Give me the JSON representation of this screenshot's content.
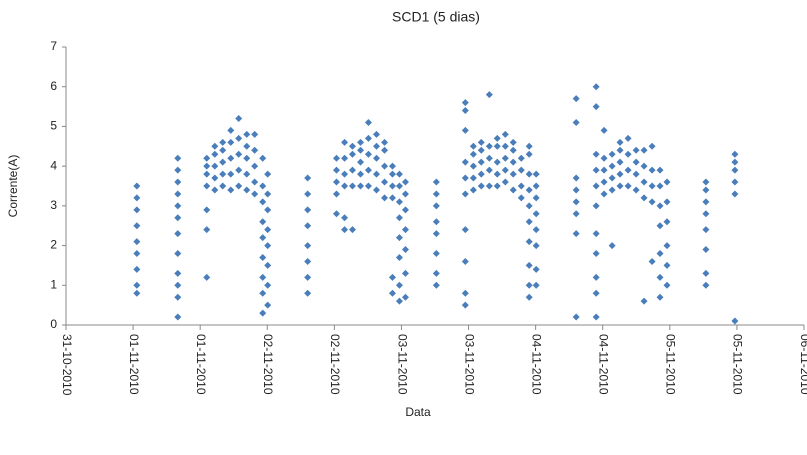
{
  "chart_data": {
    "type": "scatter",
    "title": "SCD1 (5 dias)",
    "x_label": "Data",
    "y_label": "Corrente(A)",
    "xlim": [
      0,
      5.5
    ],
    "ylim": [
      0,
      7
    ],
    "yticks": [
      0,
      1,
      2,
      3,
      4,
      5,
      6,
      7
    ],
    "xticks": [
      {
        "value": 0,
        "label": "31-10-2010"
      },
      {
        "value": 0.5,
        "label": "01-11-2010"
      },
      {
        "value": 1,
        "label": "01-11-2010"
      },
      {
        "value": 1.5,
        "label": "02-11-2010"
      },
      {
        "value": 2,
        "label": "02-11-2010"
      },
      {
        "value": 2.5,
        "label": "03-11-2010"
      },
      {
        "value": 3,
        "label": "03-11-2010"
      },
      {
        "value": 3.5,
        "label": "04-11-2010"
      },
      {
        "value": 4,
        "label": "04-11-2010"
      },
      {
        "value": 4.5,
        "label": "05-11-2010"
      },
      {
        "value": 5,
        "label": "05-11-2010"
      },
      {
        "value": 5.5,
        "label": "06-11-2010"
      }
    ],
    "x": [
      0.528,
      0.528,
      0.528,
      0.528,
      0.528,
      0.528,
      0.528,
      0.528,
      0.528,
      0.833,
      0.833,
      0.833,
      0.833,
      0.833,
      0.833,
      0.833,
      0.833,
      0.833,
      0.833,
      0.833,
      0.833,
      1.049,
      1.049,
      1.049,
      1.049,
      1.049,
      1.049,
      1.049,
      1.109,
      1.109,
      1.109,
      1.109,
      1.109,
      1.168,
      1.168,
      1.168,
      1.168,
      1.168,
      1.228,
      1.228,
      1.228,
      1.228,
      1.228,
      1.287,
      1.287,
      1.287,
      1.287,
      1.287,
      1.347,
      1.347,
      1.347,
      1.347,
      1.347,
      1.406,
      1.406,
      1.406,
      1.406,
      1.406,
      1.466,
      1.466,
      1.466,
      1.466,
      1.466,
      1.466,
      1.466,
      1.466,
      1.466,
      1.503,
      1.503,
      1.503,
      1.503,
      1.503,
      1.503,
      1.503,
      1.503,
      1.801,
      1.801,
      1.801,
      1.801,
      1.801,
      1.801,
      1.801,
      1.801,
      2.016,
      2.016,
      2.016,
      2.016,
      2.016,
      2.076,
      2.076,
      2.076,
      2.076,
      2.076,
      2.076,
      2.135,
      2.135,
      2.135,
      2.135,
      2.135,
      2.195,
      2.195,
      2.195,
      2.195,
      2.195,
      2.254,
      2.254,
      2.254,
      2.254,
      2.254,
      2.314,
      2.314,
      2.314,
      2.314,
      2.314,
      2.374,
      2.374,
      2.374,
      2.374,
      2.374,
      2.433,
      2.433,
      2.433,
      2.433,
      2.433,
      2.433,
      2.485,
      2.485,
      2.485,
      2.485,
      2.485,
      2.485,
      2.485,
      2.485,
      2.53,
      2.53,
      2.53,
      2.53,
      2.53,
      2.53,
      2.53,
      2.76,
      2.76,
      2.76,
      2.76,
      2.76,
      2.76,
      2.76,
      2.76,
      2.976,
      2.976,
      2.976,
      2.976,
      2.976,
      2.976,
      2.976,
      2.976,
      2.976,
      2.976,
      3.036,
      3.036,
      3.036,
      3.036,
      3.036,
      3.095,
      3.095,
      3.095,
      3.095,
      3.095,
      3.155,
      3.155,
      3.155,
      3.155,
      3.155,
      3.214,
      3.214,
      3.214,
      3.214,
      3.214,
      3.274,
      3.274,
      3.274,
      3.274,
      3.274,
      3.333,
      3.333,
      3.333,
      3.333,
      3.333,
      3.393,
      3.393,
      3.393,
      3.393,
      3.452,
      3.452,
      3.452,
      3.452,
      3.452,
      3.452,
      3.452,
      3.452,
      3.452,
      3.452,
      3.504,
      3.504,
      3.504,
      3.504,
      3.504,
      3.504,
      3.504,
      3.504,
      3.802,
      3.802,
      3.802,
      3.802,
      3.802,
      3.802,
      3.802,
      3.802,
      3.951,
      3.951,
      3.951,
      3.951,
      3.951,
      3.951,
      3.951,
      3.951,
      3.951,
      3.951,
      3.951,
      4.01,
      4.01,
      4.01,
      4.01,
      4.01,
      4.07,
      4.07,
      4.07,
      4.07,
      4.07,
      4.129,
      4.129,
      4.129,
      4.129,
      4.129,
      4.189,
      4.189,
      4.189,
      4.189,
      4.249,
      4.249,
      4.249,
      4.249,
      4.308,
      4.308,
      4.308,
      4.308,
      4.308,
      4.368,
      4.368,
      4.368,
      4.368,
      4.368,
      4.427,
      4.427,
      4.427,
      4.427,
      4.427,
      4.427,
      4.427,
      4.479,
      4.479,
      4.479,
      4.479,
      4.479,
      4.479,
      4.769,
      4.769,
      4.769,
      4.769,
      4.769,
      4.769,
      4.769,
      4.769,
      4.985,
      4.985,
      4.985,
      4.985,
      4.985,
      4.985
    ],
    "series": [
      {
        "color": "#4a7ebb",
        "values": [
          0.8,
          1.0,
          1.4,
          1.8,
          2.1,
          2.5,
          2.9,
          3.2,
          3.5,
          0.2,
          0.7,
          1.0,
          1.3,
          1.8,
          2.3,
          2.7,
          3.0,
          3.3,
          3.6,
          3.9,
          4.2,
          1.2,
          2.4,
          2.9,
          3.5,
          3.8,
          4.0,
          4.2,
          3.4,
          3.7,
          4.0,
          4.3,
          4.5,
          3.5,
          3.8,
          4.1,
          4.4,
          4.6,
          3.4,
          3.8,
          4.2,
          4.6,
          4.9,
          3.5,
          3.9,
          4.3,
          4.7,
          5.2,
          3.4,
          3.8,
          4.2,
          4.5,
          4.8,
          3.3,
          3.6,
          4.0,
          4.4,
          4.8,
          0.3,
          0.8,
          1.2,
          1.7,
          2.2,
          2.6,
          3.1,
          3.5,
          4.2,
          0.5,
          1.0,
          1.5,
          2.0,
          2.4,
          2.9,
          3.3,
          3.8,
          0.8,
          1.2,
          1.6,
          2.0,
          2.5,
          2.9,
          3.3,
          3.7,
          2.8,
          3.3,
          3.6,
          3.9,
          4.2,
          2.4,
          2.7,
          3.5,
          3.8,
          4.2,
          4.6,
          2.4,
          3.5,
          3.9,
          4.3,
          4.5,
          3.5,
          3.8,
          4.1,
          4.4,
          4.6,
          3.5,
          3.9,
          4.3,
          4.7,
          5.1,
          3.4,
          3.8,
          4.2,
          4.5,
          4.8,
          3.2,
          3.6,
          4.0,
          4.4,
          4.6,
          0.8,
          1.2,
          3.2,
          3.5,
          3.8,
          4.0,
          0.6,
          1.0,
          1.7,
          2.2,
          2.7,
          3.1,
          3.5,
          3.8,
          0.7,
          1.3,
          1.9,
          2.4,
          2.9,
          3.3,
          3.6,
          1.0,
          1.3,
          1.8,
          2.3,
          2.6,
          3.0,
          3.3,
          3.6,
          0.5,
          0.8,
          1.6,
          2.4,
          3.3,
          3.7,
          4.1,
          4.9,
          5.4,
          5.6,
          3.4,
          3.7,
          4.0,
          4.3,
          4.5,
          3.5,
          3.8,
          4.1,
          4.4,
          4.6,
          3.5,
          3.9,
          4.2,
          4.5,
          5.8,
          3.5,
          3.8,
          4.1,
          4.5,
          4.7,
          3.6,
          3.9,
          4.2,
          4.5,
          4.8,
          3.4,
          3.8,
          4.1,
          4.4,
          4.6,
          3.2,
          3.5,
          3.9,
          4.2,
          0.7,
          1.0,
          1.5,
          2.1,
          2.6,
          3.0,
          3.4,
          3.8,
          4.3,
          4.5,
          1.0,
          1.4,
          2.0,
          2.4,
          2.8,
          3.2,
          3.5,
          3.8,
          0.2,
          2.3,
          2.8,
          3.1,
          3.4,
          3.7,
          5.1,
          5.7,
          0.2,
          0.8,
          1.2,
          1.8,
          2.3,
          3.0,
          3.5,
          3.9,
          4.3,
          5.5,
          6.0,
          3.3,
          3.6,
          3.9,
          4.2,
          4.9,
          2.0,
          3.4,
          3.7,
          4.0,
          4.3,
          3.5,
          3.8,
          4.1,
          4.4,
          4.6,
          3.5,
          3.9,
          4.3,
          4.7,
          3.4,
          3.8,
          4.1,
          4.4,
          0.6,
          3.2,
          3.6,
          4.0,
          4.4,
          1.6,
          3.1,
          3.5,
          3.9,
          4.5,
          0.7,
          1.2,
          1.8,
          2.5,
          3.0,
          3.5,
          3.9,
          1.0,
          1.5,
          2.0,
          2.6,
          3.1,
          3.6,
          1.0,
          1.3,
          1.9,
          2.4,
          2.8,
          3.1,
          3.4,
          3.6,
          0.1,
          3.3,
          3.6,
          3.9,
          4.1,
          4.3
        ]
      }
    ]
  }
}
